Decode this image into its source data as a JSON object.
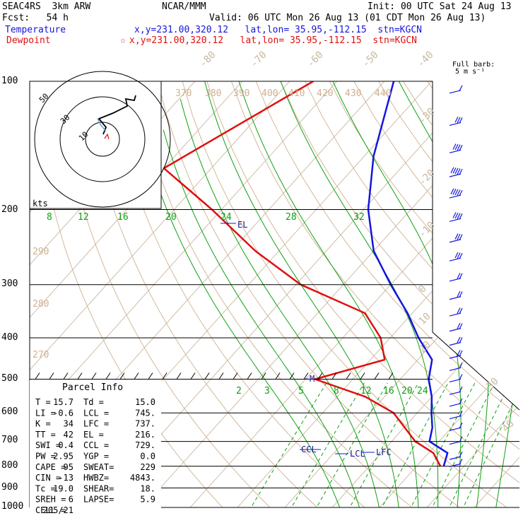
{
  "header": {
    "experiment": "SEAC4RS  3km ARW",
    "center": "NCAR/MMM",
    "init": "Init: 00 UTC Sat 24 Aug 13",
    "fcst": "Fcst:   54 h",
    "valid": "Valid: 06 UTC Mon 26 Aug 13 (01 CDT Mon 26 Aug 13)",
    "temperature_label": "Temperature",
    "temperature_loc": "x,y=231.00,320.12   lat,lon= 35.95,-112.15  stn=KGCN",
    "dewpoint_label": "Dewpoint",
    "dewpoint_loc": "x,y=231.00,320.12   lat,lon= 35.95,-112.15  stn=KGCN"
  },
  "barb_legend": {
    "title": "Full barb:",
    "value": "5 m s⁻¹"
  },
  "hodograph": {
    "units": "kts",
    "ring_labels": [
      "10",
      "30",
      "50"
    ]
  },
  "parcel_info": {
    "title": "Parcel Info",
    "rows": [
      [
        "T  =",
        "15.7",
        "Td =",
        "15.0"
      ],
      [
        "LI =",
        "-0.6",
        "LCL =",
        "745."
      ],
      [
        "K  =",
        "34",
        "LFC =",
        "737."
      ],
      [
        "TT =",
        "42",
        "EL =",
        "216."
      ],
      [
        "SWI =",
        "0.4",
        "CCL =",
        "729."
      ],
      [
        "PW =",
        "2.95",
        "YGP =",
        "0.0"
      ],
      [
        "CAPE =",
        "95",
        "SWEAT=",
        "229"
      ],
      [
        "CIN =",
        "-13",
        "HWBZ=",
        "4843."
      ],
      [
        "Tc =",
        "19.0",
        "SHEAR=",
        "18."
      ],
      [
        "SREH =",
        "6",
        "LAPSE=",
        "5.9"
      ],
      [
        "CELL =",
        "205/21",
        "",
        ""
      ]
    ]
  },
  "colors": {
    "temperature": "#1515e0",
    "dewpoint": "#e01010",
    "isotherm": "#c8b8a0",
    "dry_adiabat": "#d0b090",
    "moist_adiabat": "#10a010",
    "mixing_ratio": "#10a010",
    "isobar": "#000000"
  },
  "chart_data": {
    "type": "line",
    "title": "Skew-T sounding",
    "ylabel": "Pressure (hPa)",
    "pressure_levels": [
      100,
      200,
      300,
      400,
      500,
      600,
      700,
      800,
      900,
      1000
    ],
    "isotherm_labels": [
      -80,
      -70,
      -60,
      -50,
      -40,
      -30,
      -20,
      -10,
      0,
      10,
      20,
      30,
      40
    ],
    "theta_labels_top": [
      370,
      380,
      390,
      400,
      410,
      420,
      430,
      440
    ],
    "theta_labels_left": [
      290,
      280,
      270
    ],
    "moist_labels_200": [
      8,
      12,
      16,
      20,
      24,
      28,
      32
    ],
    "mixing_ratio_labels": [
      2,
      3,
      5,
      8,
      12,
      16,
      20,
      24
    ],
    "parcel_annotations": [
      "EL",
      "M",
      "CCL",
      "LCL",
      "LFC"
    ],
    "series": [
      {
        "name": "Temperature",
        "points": [
          [
            100,
            -68
          ],
          [
            150,
            -58
          ],
          [
            200,
            -49
          ],
          [
            250,
            -40
          ],
          [
            300,
            -30
          ],
          [
            350,
            -21
          ],
          [
            400,
            -14
          ],
          [
            450,
            -7
          ],
          [
            500,
            -4
          ],
          [
            550,
            0
          ],
          [
            600,
            3
          ],
          [
            650,
            6
          ],
          [
            700,
            8
          ],
          [
            745,
            14
          ],
          [
            800,
            15.7
          ]
        ]
      },
      {
        "name": "Dewpoint",
        "points": [
          [
            100,
            -85
          ],
          [
            160,
            -100
          ],
          [
            200,
            -82
          ],
          [
            250,
            -65
          ],
          [
            300,
            -49
          ],
          [
            350,
            -30
          ],
          [
            400,
            -22
          ],
          [
            450,
            -17
          ],
          [
            500,
            -28
          ],
          [
            550,
            -14
          ],
          [
            600,
            -5
          ],
          [
            700,
            5
          ],
          [
            745,
            11
          ],
          [
            800,
            15.0
          ]
        ]
      }
    ],
    "wind_barbs": [
      {
        "p": 105,
        "spd": 5
      },
      {
        "p": 125,
        "spd": 15
      },
      {
        "p": 145,
        "spd": 20
      },
      {
        "p": 165,
        "spd": 25
      },
      {
        "p": 185,
        "spd": 25
      },
      {
        "p": 210,
        "spd": 20
      },
      {
        "p": 235,
        "spd": 15
      },
      {
        "p": 260,
        "spd": 15
      },
      {
        "p": 290,
        "spd": 10
      },
      {
        "p": 320,
        "spd": 10
      },
      {
        "p": 350,
        "spd": 10
      },
      {
        "p": 380,
        "spd": 10
      },
      {
        "p": 410,
        "spd": 10
      },
      {
        "p": 440,
        "spd": 10
      },
      {
        "p": 470,
        "spd": 5
      },
      {
        "p": 500,
        "spd": 5
      },
      {
        "p": 535,
        "spd": 5
      },
      {
        "p": 570,
        "spd": 5
      },
      {
        "p": 610,
        "spd": 5
      },
      {
        "p": 650,
        "spd": 5
      },
      {
        "p": 700,
        "spd": 5
      },
      {
        "p": 760,
        "spd": 5
      },
      {
        "p": 790,
        "spd": 5
      }
    ]
  }
}
